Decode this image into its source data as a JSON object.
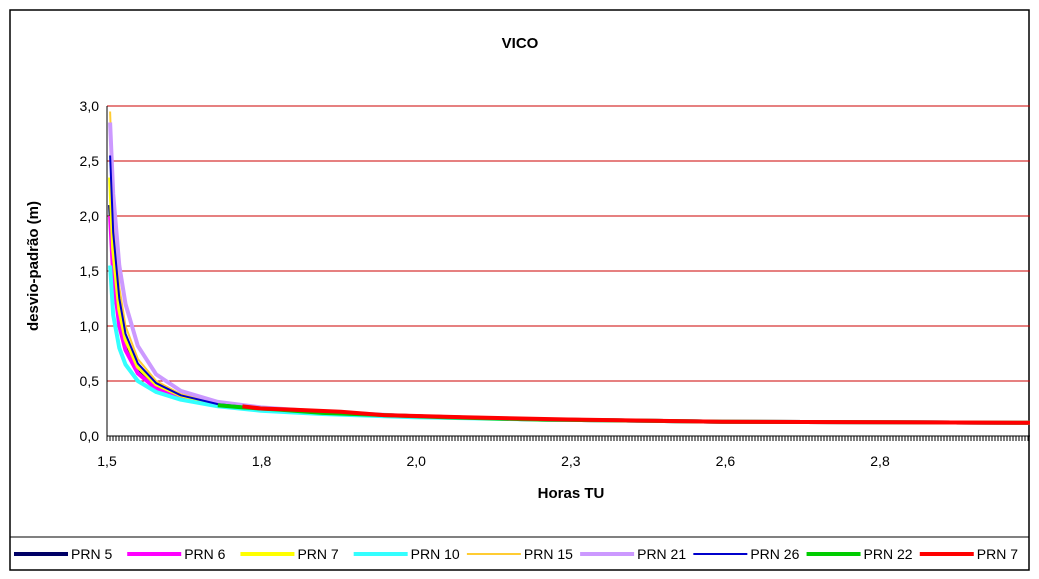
{
  "chart_data": {
    "type": "line",
    "title": "VICO",
    "xlabel": "Horas TU",
    "ylabel": "desvio-padrão (m)",
    "xlim": [
      1.5,
      3.0
    ],
    "ylim": [
      0.0,
      3.0
    ],
    "y_ticks": [
      "0,0",
      "0,5",
      "1,0",
      "1,5",
      "2,0",
      "2,5",
      "3,0"
    ],
    "x_ticks": [
      "1,5",
      "1,8",
      "2,0",
      "2,3",
      "2,6",
      "2,8"
    ],
    "grid": "horizontal",
    "grid_color": "#cc0000",
    "legend_position": "bottom",
    "series": [
      {
        "name": "PRN 5",
        "color": "#000066",
        "width": 4,
        "x": [
          1.505,
          1.51,
          1.52,
          1.53,
          1.55,
          1.58,
          1.62,
          1.68,
          1.75,
          1.85,
          2.0,
          2.2,
          2.5,
          3.0
        ],
        "y": [
          2.1,
          1.55,
          1.1,
          0.85,
          0.62,
          0.46,
          0.36,
          0.29,
          0.25,
          0.21,
          0.18,
          0.15,
          0.13,
          0.12
        ]
      },
      {
        "name": "PRN 6",
        "color": "#ff00ff",
        "width": 4,
        "x": [
          1.505,
          1.51,
          1.52,
          1.53,
          1.55,
          1.58,
          1.62,
          1.68,
          1.75,
          1.85,
          2.0,
          2.2,
          2.5,
          3.0
        ],
        "y": [
          2.0,
          1.45,
          1.0,
          0.78,
          0.57,
          0.43,
          0.35,
          0.28,
          0.24,
          0.21,
          0.18,
          0.15,
          0.13,
          0.12
        ]
      },
      {
        "name": "PRN 7",
        "color": "#ffff00",
        "width": 4,
        "x": [
          1.505,
          1.51,
          1.52,
          1.53,
          1.55,
          1.58,
          1.62,
          1.68,
          1.75,
          1.85,
          2.0,
          2.2,
          2.5,
          3.0
        ],
        "y": [
          2.35,
          1.7,
          1.15,
          0.88,
          0.63,
          0.47,
          0.37,
          0.29,
          0.25,
          0.21,
          0.18,
          0.15,
          0.13,
          0.12
        ]
      },
      {
        "name": "PRN 10",
        "color": "#33ffff",
        "width": 4,
        "x": [
          1.505,
          1.51,
          1.52,
          1.53,
          1.55,
          1.58,
          1.62,
          1.68,
          1.75,
          1.85,
          2.0,
          2.2,
          2.5,
          3.0
        ],
        "y": [
          1.55,
          1.1,
          0.8,
          0.65,
          0.5,
          0.4,
          0.33,
          0.27,
          0.23,
          0.2,
          0.17,
          0.15,
          0.13,
          0.12
        ]
      },
      {
        "name": "PRN 15",
        "color": "#ffcc33",
        "width": 2,
        "x": [
          1.505,
          1.51,
          1.52,
          1.53,
          1.55,
          1.58,
          1.62,
          1.68,
          1.75,
          1.85,
          2.0,
          2.2,
          2.5,
          3.0
        ],
        "y": [
          2.95,
          2.1,
          1.35,
          1.0,
          0.7,
          0.5,
          0.38,
          0.3,
          0.25,
          0.21,
          0.18,
          0.15,
          0.13,
          0.12
        ]
      },
      {
        "name": "PRN 21",
        "color": "#cc99ff",
        "width": 4,
        "x": [
          1.505,
          1.51,
          1.52,
          1.53,
          1.55,
          1.58,
          1.62,
          1.68,
          1.75,
          1.85,
          2.0,
          2.2,
          2.5,
          3.0
        ],
        "y": [
          2.85,
          2.2,
          1.55,
          1.2,
          0.82,
          0.56,
          0.41,
          0.31,
          0.26,
          0.22,
          0.18,
          0.15,
          0.13,
          0.12
        ]
      },
      {
        "name": "PRN 26",
        "color": "#0000cc",
        "width": 2,
        "x": [
          1.505,
          1.51,
          1.52,
          1.53,
          1.55,
          1.58,
          1.62,
          1.68,
          1.75,
          1.85,
          2.0,
          2.2,
          2.5,
          3.0
        ],
        "y": [
          2.55,
          1.85,
          1.25,
          0.93,
          0.66,
          0.48,
          0.37,
          0.29,
          0.25,
          0.21,
          0.18,
          0.15,
          0.13,
          0.12
        ]
      },
      {
        "name": "PRN 22",
        "color": "#00cc00",
        "width": 4,
        "x": [
          1.68,
          1.72,
          1.78,
          1.85,
          1.95,
          2.05,
          2.2,
          2.5,
          3.0
        ],
        "y": [
          0.28,
          0.26,
          0.24,
          0.21,
          0.19,
          0.17,
          0.15,
          0.13,
          0.12
        ]
      },
      {
        "name": "PRN 7",
        "color": "#ff0000",
        "width": 4,
        "x": [
          1.72,
          1.75,
          1.8,
          1.88,
          1.95,
          2.08,
          2.25,
          2.5,
          3.0
        ],
        "y": [
          0.27,
          0.25,
          0.24,
          0.22,
          0.19,
          0.17,
          0.15,
          0.13,
          0.12
        ]
      }
    ]
  }
}
